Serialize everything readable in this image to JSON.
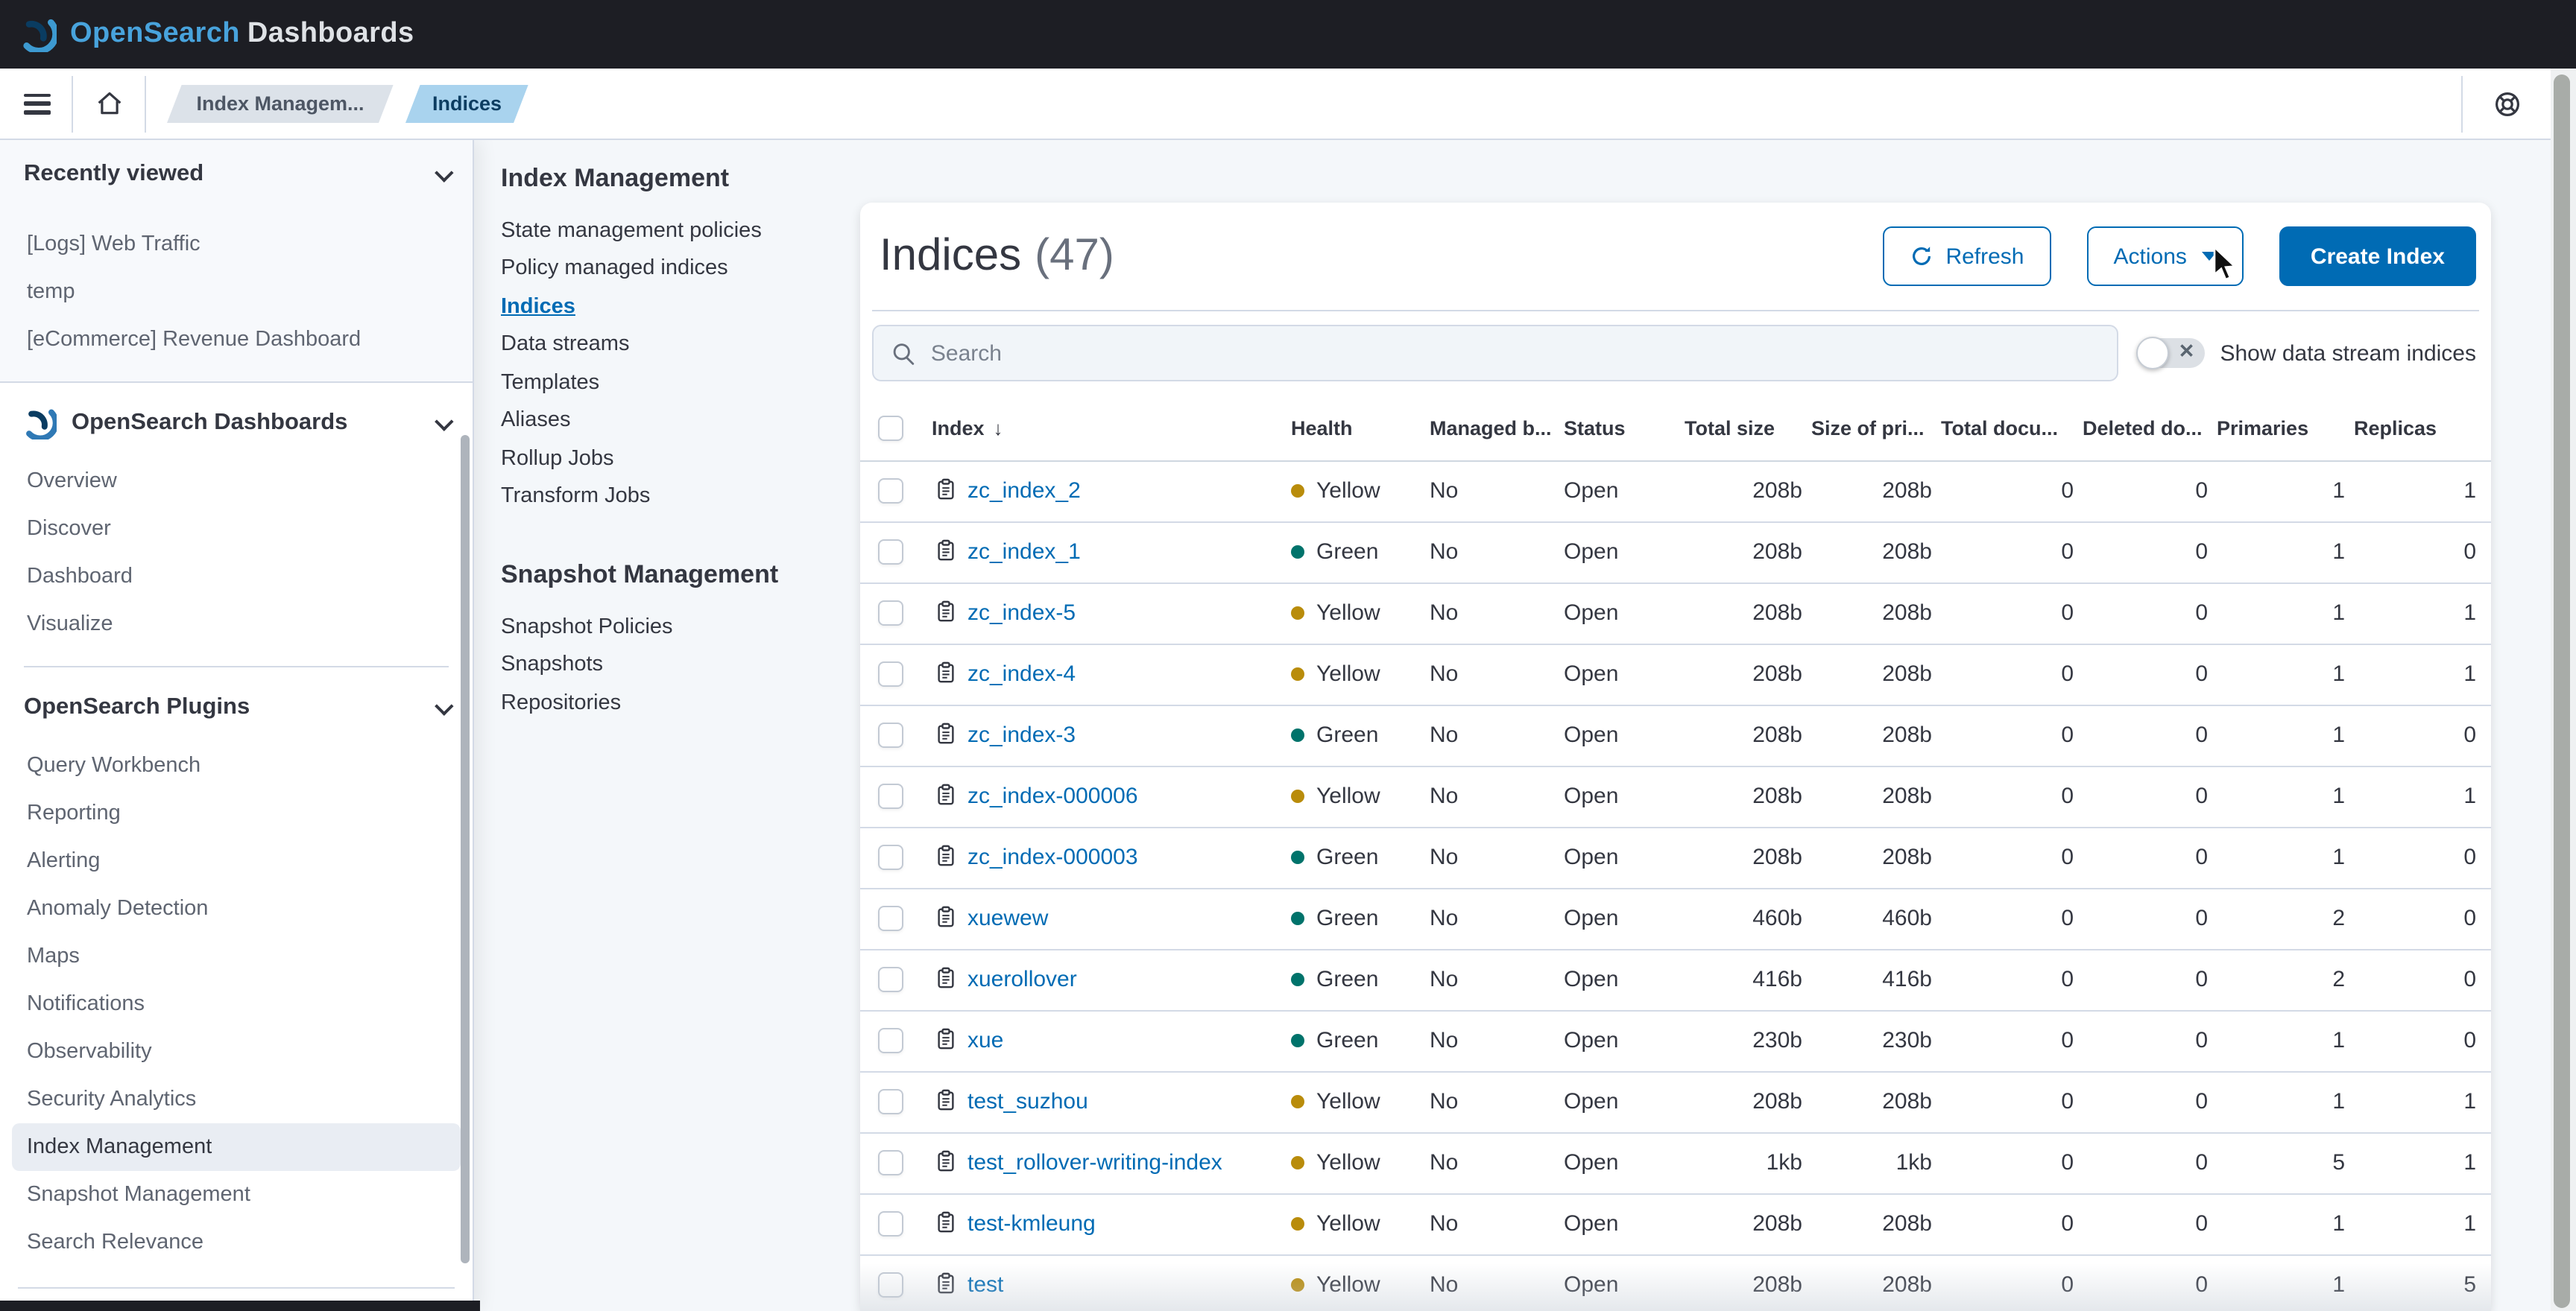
{
  "header": {
    "brand_primary": "OpenSearch",
    "brand_secondary": "Dashboards"
  },
  "breadcrumbs": {
    "prev": "Index Managem...",
    "current": "Indices"
  },
  "sidebar": {
    "recently_viewed": {
      "title": "Recently viewed",
      "items": [
        "[Logs] Web Traffic",
        "temp",
        "[eCommerce] Revenue Dashboard"
      ]
    },
    "dashboards_group": {
      "title": "OpenSearch Dashboards",
      "items": [
        "Overview",
        "Discover",
        "Dashboard",
        "Visualize"
      ]
    },
    "plugins_group": {
      "title": "OpenSearch Plugins",
      "items": [
        "Query Workbench",
        "Reporting",
        "Alerting",
        "Anomaly Detection",
        "Maps",
        "Notifications",
        "Observability",
        "Security Analytics",
        "Index Management",
        "Snapshot Management",
        "Search Relevance"
      ],
      "selected": "Index Management"
    }
  },
  "ism_nav": {
    "index_management": {
      "title": "Index Management",
      "items": [
        "State management policies",
        "Policy managed indices",
        "Indices",
        "Data streams",
        "Templates",
        "Aliases",
        "Rollup Jobs",
        "Transform Jobs"
      ],
      "active": "Indices"
    },
    "snapshot_management": {
      "title": "Snapshot Management",
      "items": [
        "Snapshot Policies",
        "Snapshots",
        "Repositories"
      ]
    }
  },
  "main": {
    "title": "Indices",
    "count": "(47)",
    "buttons": {
      "refresh": "Refresh",
      "actions": "Actions",
      "create": "Create Index"
    },
    "search_placeholder": "Search",
    "toggle_label": "Show data stream indices",
    "table": {
      "columns": [
        {
          "label": "Index",
          "key": "name",
          "align": "left",
          "sorted": "desc"
        },
        {
          "label": "Health",
          "key": "health",
          "align": "left"
        },
        {
          "label": "Managed b...",
          "key": "managed",
          "align": "left"
        },
        {
          "label": "Status",
          "key": "status",
          "align": "left"
        },
        {
          "label": "Total size",
          "key": "total_size",
          "align": "right"
        },
        {
          "label": "Size of pri...",
          "key": "size_primaries",
          "align": "right"
        },
        {
          "label": "Total docu...",
          "key": "total_docs",
          "align": "right"
        },
        {
          "label": "Deleted do...",
          "key": "deleted_docs",
          "align": "right"
        },
        {
          "label": "Primaries",
          "key": "primaries",
          "align": "right"
        },
        {
          "label": "Replicas",
          "key": "replicas",
          "align": "right"
        }
      ],
      "rows": [
        {
          "name": "zc_index_2",
          "health": "Yellow",
          "managed": "No",
          "status": "Open",
          "total_size": "208b",
          "size_primaries": "208b",
          "total_docs": "0",
          "deleted_docs": "0",
          "primaries": "1",
          "replicas": "1"
        },
        {
          "name": "zc_index_1",
          "health": "Green",
          "managed": "No",
          "status": "Open",
          "total_size": "208b",
          "size_primaries": "208b",
          "total_docs": "0",
          "deleted_docs": "0",
          "primaries": "1",
          "replicas": "0"
        },
        {
          "name": "zc_index-5",
          "health": "Yellow",
          "managed": "No",
          "status": "Open",
          "total_size": "208b",
          "size_primaries": "208b",
          "total_docs": "0",
          "deleted_docs": "0",
          "primaries": "1",
          "replicas": "1"
        },
        {
          "name": "zc_index-4",
          "health": "Yellow",
          "managed": "No",
          "status": "Open",
          "total_size": "208b",
          "size_primaries": "208b",
          "total_docs": "0",
          "deleted_docs": "0",
          "primaries": "1",
          "replicas": "1"
        },
        {
          "name": "zc_index-3",
          "health": "Green",
          "managed": "No",
          "status": "Open",
          "total_size": "208b",
          "size_primaries": "208b",
          "total_docs": "0",
          "deleted_docs": "0",
          "primaries": "1",
          "replicas": "0"
        },
        {
          "name": "zc_index-000006",
          "health": "Yellow",
          "managed": "No",
          "status": "Open",
          "total_size": "208b",
          "size_primaries": "208b",
          "total_docs": "0",
          "deleted_docs": "0",
          "primaries": "1",
          "replicas": "1"
        },
        {
          "name": "zc_index-000003",
          "health": "Green",
          "managed": "No",
          "status": "Open",
          "total_size": "208b",
          "size_primaries": "208b",
          "total_docs": "0",
          "deleted_docs": "0",
          "primaries": "1",
          "replicas": "0"
        },
        {
          "name": "xuewew",
          "health": "Green",
          "managed": "No",
          "status": "Open",
          "total_size": "460b",
          "size_primaries": "460b",
          "total_docs": "0",
          "deleted_docs": "0",
          "primaries": "2",
          "replicas": "0"
        },
        {
          "name": "xuerollover",
          "health": "Green",
          "managed": "No",
          "status": "Open",
          "total_size": "416b",
          "size_primaries": "416b",
          "total_docs": "0",
          "deleted_docs": "0",
          "primaries": "2",
          "replicas": "0"
        },
        {
          "name": "xue",
          "health": "Green",
          "managed": "No",
          "status": "Open",
          "total_size": "230b",
          "size_primaries": "230b",
          "total_docs": "0",
          "deleted_docs": "0",
          "primaries": "1",
          "replicas": "0"
        },
        {
          "name": "test_suzhou",
          "health": "Yellow",
          "managed": "No",
          "status": "Open",
          "total_size": "208b",
          "size_primaries": "208b",
          "total_docs": "0",
          "deleted_docs": "0",
          "primaries": "1",
          "replicas": "1"
        },
        {
          "name": "test_rollover-writing-index",
          "health": "Yellow",
          "managed": "No",
          "status": "Open",
          "total_size": "1kb",
          "size_primaries": "1kb",
          "total_docs": "0",
          "deleted_docs": "0",
          "primaries": "5",
          "replicas": "1"
        },
        {
          "name": "test-kmleung",
          "health": "Yellow",
          "managed": "No",
          "status": "Open",
          "total_size": "208b",
          "size_primaries": "208b",
          "total_docs": "0",
          "deleted_docs": "0",
          "primaries": "1",
          "replicas": "1"
        },
        {
          "name": "test",
          "health": "Yellow",
          "managed": "No",
          "status": "Open",
          "total_size": "208b",
          "size_primaries": "208b",
          "total_docs": "0",
          "deleted_docs": "0",
          "primaries": "1",
          "replicas": "5"
        }
      ]
    }
  },
  "colors": {
    "accent": "#006BB4",
    "header_bg": "#1D1E24",
    "health_yellow": "#B98C0B",
    "health_green": "#00736B",
    "row_border": "#D3DAE6"
  },
  "icons": {
    "menu": "hamburger-icon",
    "home": "home-icon",
    "help": "lifebuoy-icon",
    "search": "magnifier-icon",
    "refresh": "circular-arrow-icon",
    "index_row": "clipboard-icon",
    "sort": "arrow-down"
  }
}
